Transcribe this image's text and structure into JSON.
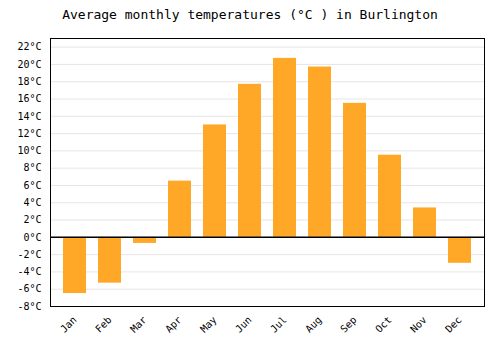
{
  "chart_data": {
    "type": "bar",
    "title": "Average monthly temperatures (°C ) in Burlington",
    "categories": [
      "Jan",
      "Feb",
      "Mar",
      "Apr",
      "May",
      "Jun",
      "Jul",
      "Aug",
      "Sep",
      "Oct",
      "Nov",
      "Dec"
    ],
    "values": [
      -6.5,
      -5.3,
      -0.7,
      6.5,
      13.0,
      17.7,
      20.7,
      19.7,
      15.5,
      9.5,
      3.4,
      -3.0
    ],
    "color": "#FFA726",
    "ylim": [
      -8,
      23
    ],
    "yticks": [
      {
        "value": -8,
        "label": "-8°C"
      },
      {
        "value": -6,
        "label": "-6°C"
      },
      {
        "value": -4,
        "label": "-4°C"
      },
      {
        "value": -2,
        "label": "-2°C"
      },
      {
        "value": 0,
        "label": "0°C"
      },
      {
        "value": 2,
        "label": "2°C"
      },
      {
        "value": 4,
        "label": "4°C"
      },
      {
        "value": 6,
        "label": "6°C"
      },
      {
        "value": 8,
        "label": "8°C"
      },
      {
        "value": 10,
        "label": "10°C"
      },
      {
        "value": 12,
        "label": "12°C"
      },
      {
        "value": 14,
        "label": "14°C"
      },
      {
        "value": 16,
        "label": "16°C"
      },
      {
        "value": 18,
        "label": "18°C"
      },
      {
        "value": 20,
        "label": "20°C"
      },
      {
        "value": 22,
        "label": "22°C"
      }
    ],
    "grid": true
  }
}
